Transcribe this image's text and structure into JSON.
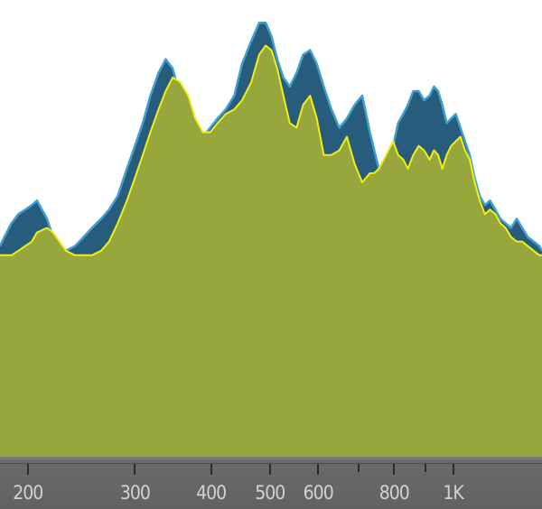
{
  "colors": {
    "background": "#ffffff",
    "past_fill": "#285c7c",
    "past_edge": "#3f9fd0",
    "current_fill": "#97a73b",
    "current_edge": "#f2ee18",
    "axis_background": "#666666",
    "axis_label": "#d2d2d2"
  },
  "chart_data": {
    "type": "area",
    "x_scale": "log",
    "xlim": [
      180,
      1400
    ],
    "ylim": [
      0,
      1
    ],
    "grid": false,
    "tick_labels": [
      "200",
      "300",
      "400",
      "500",
      "600",
      "800",
      "1K"
    ],
    "ticks": [
      {
        "freq": 200,
        "label": "200"
      },
      {
        "freq": 300,
        "label": "300"
      },
      {
        "freq": 400,
        "label": "400"
      },
      {
        "freq": 500,
        "label": "500"
      },
      {
        "freq": 600,
        "label": "600"
      },
      {
        "freq": 700,
        "label": ""
      },
      {
        "freq": 800,
        "label": "800"
      },
      {
        "freq": 900,
        "label": ""
      },
      {
        "freq": 1000,
        "label": "1K"
      }
    ],
    "series": [
      {
        "key": "peak",
        "x": [
          180,
          183,
          188,
          193,
          198,
          203,
          207,
          215,
          220,
          231,
          239,
          247,
          255,
          264,
          272,
          281,
          291,
          300,
          309,
          318,
          328,
          337,
          346,
          356,
          367,
          377,
          388,
          399,
          410,
          423,
          437,
          450,
          466,
          480,
          492,
          503,
          514,
          526,
          539,
          553,
          567,
          582,
          597,
          613,
          631,
          650,
          669,
          689,
          709,
          730,
          742,
          755,
          769,
          783,
          797,
          812,
          828,
          843,
          860,
          878,
          896,
          915,
          930,
          945,
          960,
          976,
          993,
          1010,
          1028,
          1046,
          1065,
          1085,
          1106,
          1128,
          1150,
          1173,
          1196,
          1220,
          1245,
          1272,
          1299,
          1327,
          1356,
          1386,
          1400
        ],
        "y": [
          0.46,
          0.48,
          0.51,
          0.53,
          0.54,
          0.55,
          0.56,
          0.52,
          0.48,
          0.45,
          0.46,
          0.48,
          0.5,
          0.52,
          0.54,
          0.57,
          0.63,
          0.68,
          0.73,
          0.79,
          0.84,
          0.87,
          0.85,
          0.79,
          0.74,
          0.71,
          0.7,
          0.72,
          0.74,
          0.76,
          0.79,
          0.86,
          0.91,
          0.95,
          0.95,
          0.92,
          0.87,
          0.83,
          0.81,
          0.84,
          0.88,
          0.89,
          0.86,
          0.81,
          0.76,
          0.72,
          0.74,
          0.77,
          0.79,
          0.71,
          0.67,
          0.63,
          0.61,
          0.64,
          0.68,
          0.73,
          0.75,
          0.77,
          0.8,
          0.8,
          0.78,
          0.79,
          0.81,
          0.8,
          0.77,
          0.73,
          0.74,
          0.75,
          0.72,
          0.69,
          0.66,
          0.61,
          0.57,
          0.55,
          0.56,
          0.54,
          0.52,
          0.51,
          0.5,
          0.52,
          0.5,
          0.48,
          0.47,
          0.46,
          0.45
        ]
      },
      {
        "key": "current",
        "x": [
          180,
          183,
          188,
          193,
          198,
          203,
          207,
          215,
          220,
          231,
          239,
          247,
          255,
          264,
          272,
          281,
          291,
          300,
          309,
          318,
          328,
          337,
          346,
          356,
          367,
          377,
          388,
          399,
          410,
          423,
          437,
          450,
          466,
          480,
          492,
          503,
          514,
          526,
          539,
          553,
          567,
          582,
          597,
          613,
          631,
          650,
          669,
          689,
          709,
          730,
          742,
          755,
          769,
          783,
          797,
          812,
          828,
          843,
          860,
          878,
          896,
          915,
          930,
          945,
          960,
          976,
          993,
          1010,
          1028,
          1046,
          1065,
          1085,
          1106,
          1128,
          1150,
          1173,
          1196,
          1220,
          1245,
          1272,
          1299,
          1327,
          1356,
          1386,
          1400
        ],
        "y": [
          0.44,
          0.44,
          0.44,
          0.45,
          0.46,
          0.47,
          0.49,
          0.5,
          0.49,
          0.45,
          0.44,
          0.44,
          0.44,
          0.45,
          0.47,
          0.51,
          0.56,
          0.61,
          0.66,
          0.71,
          0.76,
          0.8,
          0.83,
          0.82,
          0.79,
          0.74,
          0.71,
          0.71,
          0.73,
          0.75,
          0.76,
          0.78,
          0.82,
          0.88,
          0.9,
          0.89,
          0.85,
          0.79,
          0.73,
          0.72,
          0.77,
          0.79,
          0.74,
          0.66,
          0.66,
          0.67,
          0.7,
          0.64,
          0.6,
          0.62,
          0.62,
          0.63,
          0.65,
          0.67,
          0.69,
          0.66,
          0.65,
          0.63,
          0.66,
          0.68,
          0.67,
          0.65,
          0.67,
          0.66,
          0.63,
          0.66,
          0.68,
          0.69,
          0.7,
          0.67,
          0.65,
          0.6,
          0.56,
          0.53,
          0.54,
          0.53,
          0.51,
          0.5,
          0.48,
          0.47,
          0.47,
          0.46,
          0.45,
          0.44,
          0.44
        ]
      }
    ]
  }
}
